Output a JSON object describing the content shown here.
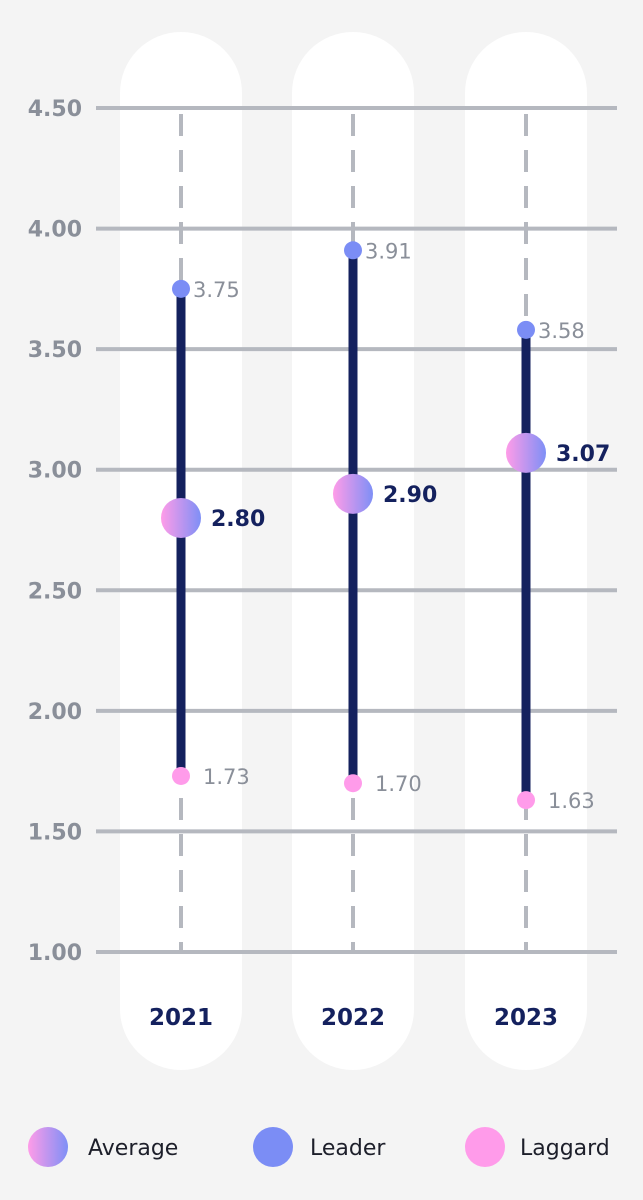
{
  "chart_data": {
    "type": "range",
    "categories": [
      "2021",
      "2022",
      "2023"
    ],
    "series": [
      {
        "name": "Average",
        "values": [
          2.8,
          2.9,
          3.07
        ],
        "labels": [
          "2.80",
          "2.90",
          "3.07"
        ]
      },
      {
        "name": "Leader",
        "values": [
          3.75,
          3.91,
          3.58
        ],
        "labels": [
          "3.75",
          "3.91",
          "3.58"
        ]
      },
      {
        "name": "Laggard",
        "values": [
          1.73,
          1.7,
          1.63
        ],
        "labels": [
          "1.73",
          "1.70",
          "1.63"
        ]
      }
    ],
    "yticks": [
      "1.00",
      "1.50",
      "2.00",
      "2.50",
      "3.00",
      "3.50",
      "4.00",
      "4.50"
    ],
    "ylim": [
      1.0,
      4.5
    ],
    "grid": true,
    "legend_position": "bottom"
  },
  "colors": {
    "leader": "#7b8df5",
    "laggard": "#ff9bea",
    "average_from": "#ff9ce8",
    "average_to": "#7e8ff6",
    "range_line": "#14215e",
    "grid": "#b5b8bf",
    "column": "#ffffff"
  }
}
